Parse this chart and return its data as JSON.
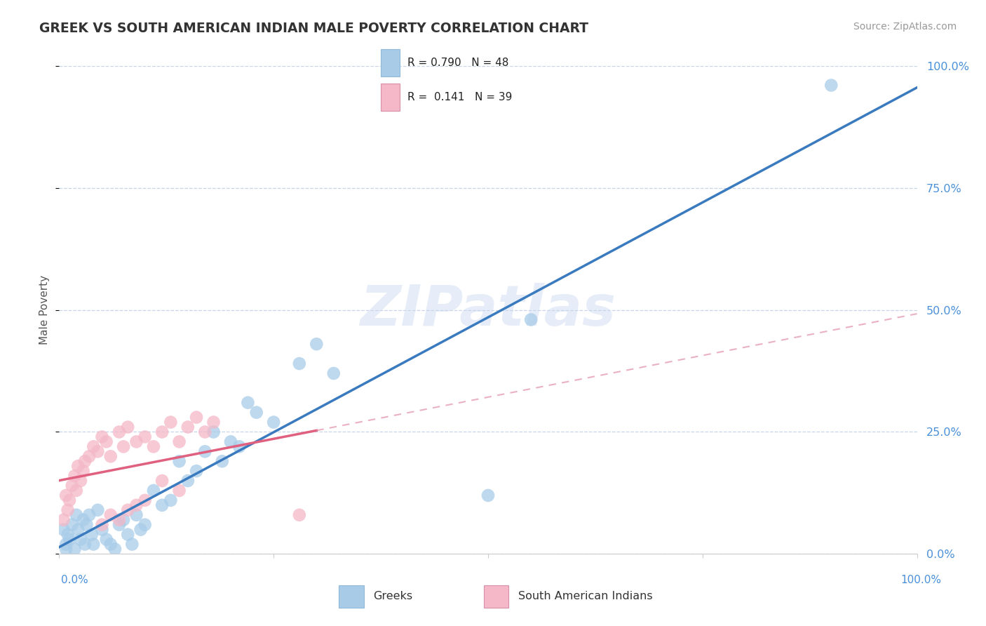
{
  "title": "GREEK VS SOUTH AMERICAN INDIAN MALE POVERTY CORRELATION CHART",
  "source": "Source: ZipAtlas.com",
  "ylabel": "Male Poverty",
  "legend_label1": "Greeks",
  "legend_label2": "South American Indians",
  "r1": 0.79,
  "n1": 48,
  "r2": 0.141,
  "n2": 39,
  "color_blue": "#a8cce8",
  "color_pink": "#f4b8c8",
  "line_blue": "#3a7abf",
  "line_pink": "#e06080",
  "line_pink_dash": "#e090a8",
  "watermark": "ZIPatlas",
  "background_color": "#ffffff",
  "grid_color": "#c8d4e8",
  "ytick_values": [
    0.0,
    0.25,
    0.5,
    0.75,
    1.0
  ],
  "greek_x": [
    0.005,
    0.008,
    0.01,
    0.012,
    0.015,
    0.018,
    0.02,
    0.022,
    0.025,
    0.028,
    0.03,
    0.032,
    0.035,
    0.038,
    0.04,
    0.045,
    0.05,
    0.055,
    0.06,
    0.065,
    0.07,
    0.075,
    0.08,
    0.085,
    0.09,
    0.095,
    0.1,
    0.11,
    0.12,
    0.13,
    0.14,
    0.15,
    0.16,
    0.17,
    0.18,
    0.19,
    0.2,
    0.21,
    0.22,
    0.23,
    0.25,
    0.28,
    0.3,
    0.32,
    0.5,
    0.55,
    0.9,
    0.008
  ],
  "greek_y": [
    0.05,
    0.02,
    0.04,
    0.03,
    0.06,
    0.01,
    0.08,
    0.05,
    0.03,
    0.07,
    0.02,
    0.06,
    0.08,
    0.04,
    0.02,
    0.09,
    0.05,
    0.03,
    0.02,
    0.01,
    0.06,
    0.07,
    0.04,
    0.02,
    0.08,
    0.05,
    0.06,
    0.13,
    0.1,
    0.11,
    0.19,
    0.15,
    0.17,
    0.21,
    0.25,
    0.19,
    0.23,
    0.22,
    0.31,
    0.29,
    0.27,
    0.39,
    0.43,
    0.37,
    0.12,
    0.48,
    0.96,
    0.01
  ],
  "sai_x": [
    0.005,
    0.008,
    0.01,
    0.012,
    0.015,
    0.018,
    0.02,
    0.022,
    0.025,
    0.028,
    0.03,
    0.035,
    0.04,
    0.045,
    0.05,
    0.055,
    0.06,
    0.07,
    0.075,
    0.08,
    0.09,
    0.1,
    0.11,
    0.12,
    0.13,
    0.14,
    0.15,
    0.16,
    0.17,
    0.18,
    0.05,
    0.06,
    0.07,
    0.08,
    0.09,
    0.1,
    0.12,
    0.14,
    0.28
  ],
  "sai_y": [
    0.07,
    0.12,
    0.09,
    0.11,
    0.14,
    0.16,
    0.13,
    0.18,
    0.15,
    0.17,
    0.19,
    0.2,
    0.22,
    0.21,
    0.24,
    0.23,
    0.2,
    0.25,
    0.22,
    0.26,
    0.23,
    0.24,
    0.22,
    0.25,
    0.27,
    0.23,
    0.26,
    0.28,
    0.25,
    0.27,
    0.06,
    0.08,
    0.07,
    0.09,
    0.1,
    0.11,
    0.15,
    0.13,
    0.08
  ]
}
